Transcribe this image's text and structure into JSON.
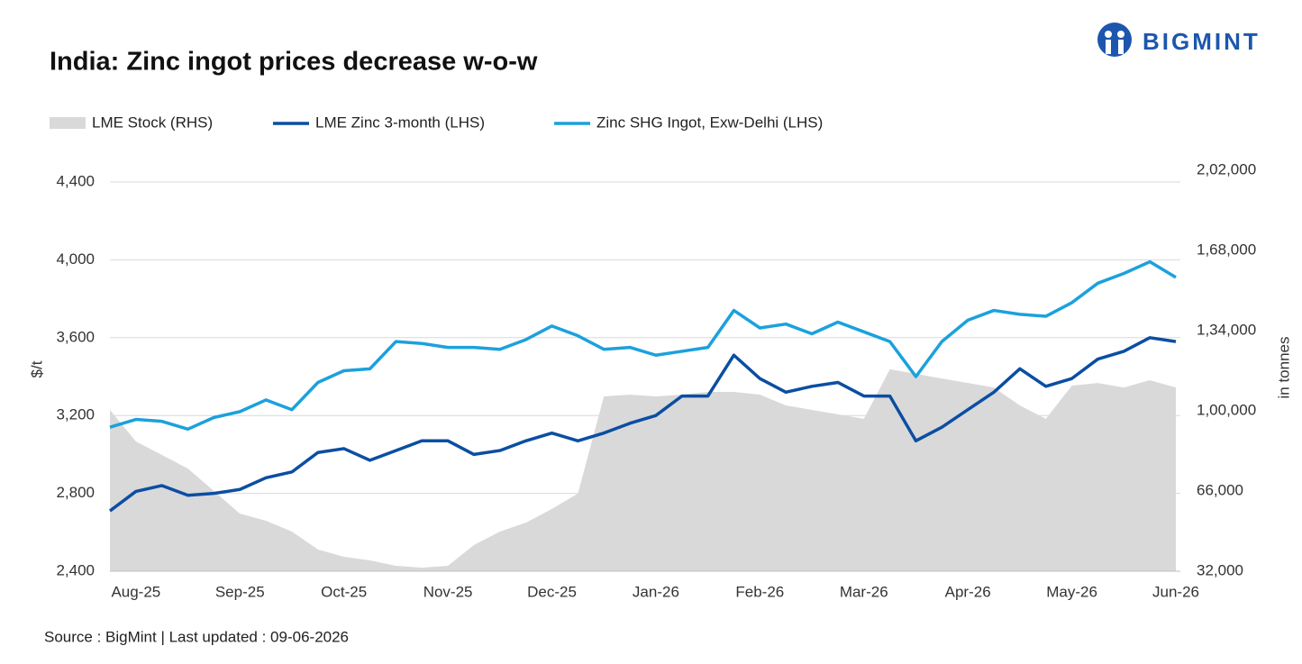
{
  "chart_data": {
    "type": "line",
    "title": "India: Zinc ingot prices decrease w-o-w",
    "brand": "BIGMINT",
    "source": "Source : BigMint | Last updated : 09-06-2026",
    "y_label": "$/t",
    "y2_label": "in tonnes",
    "categories": [
      null,
      "Aug-25",
      null,
      null,
      null,
      "Sep-25",
      null,
      null,
      null,
      "Oct-25",
      null,
      null,
      null,
      "Nov-25",
      null,
      null,
      null,
      "Dec-25",
      null,
      null,
      null,
      "Jan-26",
      null,
      null,
      null,
      "Feb-26",
      null,
      null,
      null,
      "Mar-26",
      null,
      null,
      null,
      "Apr-26",
      null,
      null,
      null,
      "May-26",
      null,
      null,
      null,
      "Jun-26"
    ],
    "series": [
      {
        "name": "LME Stock (RHS)",
        "type": "area",
        "axis": "y2",
        "color": "#d9d9d9",
        "values": [
          100400,
          87000,
          81300,
          75500,
          66000,
          56400,
          53400,
          48800,
          41200,
          38100,
          36600,
          34300,
          33500,
          34300,
          43100,
          48800,
          52600,
          58400,
          64900,
          106100,
          106900,
          106100,
          106900,
          108000,
          108000,
          106900,
          102300,
          100400,
          98500,
          96600,
          117600,
          115700,
          113700,
          111800,
          109900,
          102300,
          96600,
          110700,
          111800,
          109900,
          113000,
          109900
        ]
      },
      {
        "name": "LME  Zinc  3-month (LHS)",
        "type": "line",
        "color": "#0b4ea2",
        "values": [
          2710,
          2810,
          2840,
          2790,
          2800,
          2820,
          2880,
          2910,
          3010,
          3030,
          2970,
          3020,
          3070,
          3070,
          3000,
          3020,
          3070,
          3110,
          3070,
          3110,
          3160,
          3200,
          3300,
          3300,
          3510,
          3390,
          3320,
          3350,
          3370,
          3300,
          3300,
          3070,
          3140,
          3230,
          3320,
          3440,
          3350,
          3390,
          3490,
          3530,
          3600,
          3580
        ]
      },
      {
        "name": "Zinc SHG Ingot, Exw-Delhi (LHS)",
        "type": "line",
        "color": "#1ba1dd",
        "values": [
          3140,
          3180,
          3170,
          3130,
          3190,
          3220,
          3280,
          3230,
          3370,
          3430,
          3440,
          3580,
          3570,
          3550,
          3550,
          3540,
          3590,
          3660,
          3610,
          3540,
          3550,
          3510,
          3530,
          3550,
          3740,
          3650,
          3670,
          3620,
          3680,
          3630,
          3580,
          3400,
          3580,
          3690,
          3740,
          3720,
          3710,
          3780,
          3880,
          3930,
          3990,
          3910
        ]
      }
    ],
    "ylim": [
      2400,
      4400
    ],
    "yticks": [
      {
        "value": 2400,
        "label": "2,400"
      },
      {
        "value": 2800,
        "label": "2,800"
      },
      {
        "value": 3200,
        "label": "3,200"
      },
      {
        "value": 3600,
        "label": "3,600"
      },
      {
        "value": 4000,
        "label": "4,000"
      },
      {
        "value": 4400,
        "label": "4,400"
      }
    ],
    "y2lim": [
      32000,
      202000
    ],
    "y2ticks": [
      {
        "value": 32000,
        "label": "32,000"
      },
      {
        "value": 66000,
        "label": "66,000"
      },
      {
        "value": 100000,
        "label": "1,00,000"
      },
      {
        "value": 134000,
        "label": "1,34,000"
      },
      {
        "value": 168000,
        "label": "1,68,000"
      },
      {
        "value": 202000,
        "label": "2,02,000"
      }
    ],
    "grid": true,
    "legend": "top-left"
  }
}
